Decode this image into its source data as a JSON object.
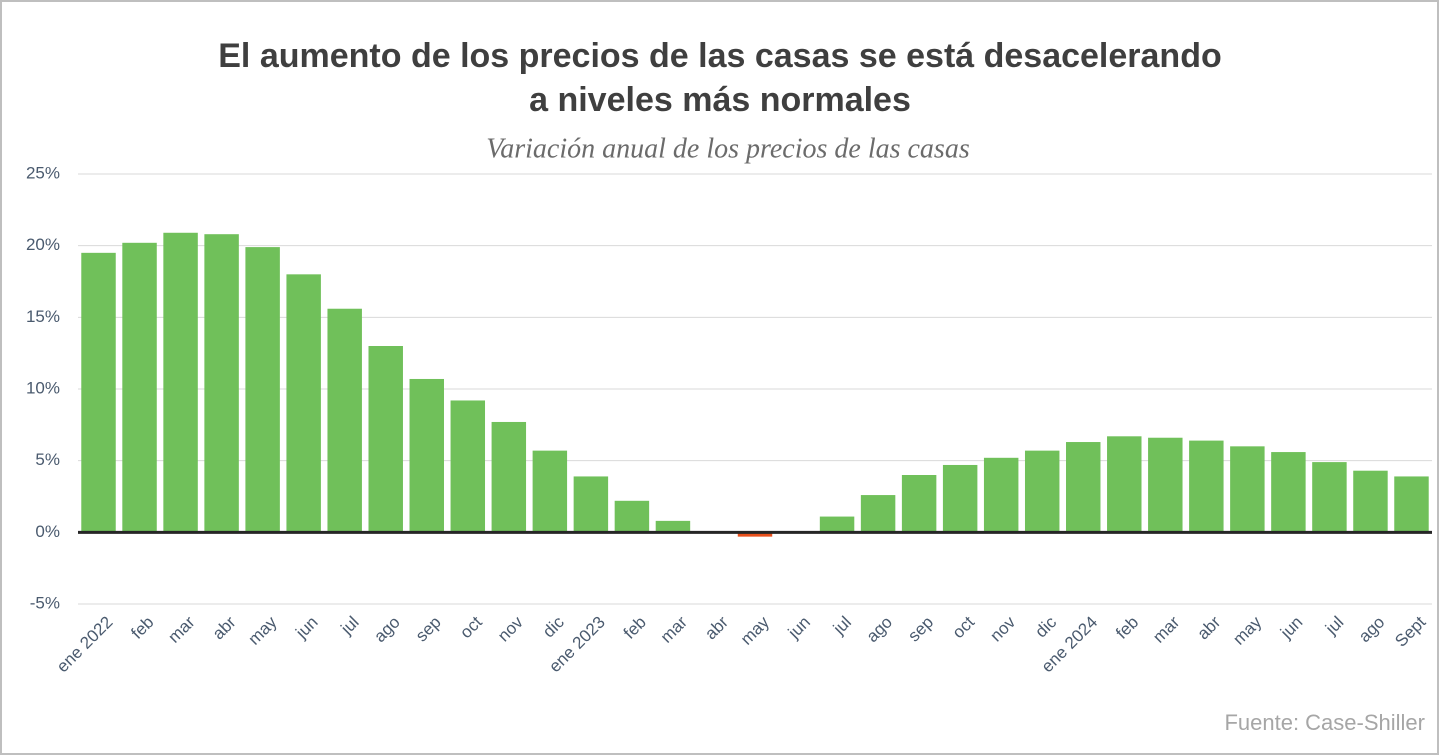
{
  "chart_data": {
    "type": "bar",
    "title": [
      "El aumento de los precios de las casas se está desacelerando",
      "a niveles más normales"
    ],
    "subtitle": "Variación anual de los precios de las casas",
    "source": "Fuente: Case-Shiller",
    "categories": [
      "ene 2022",
      "feb",
      "mar",
      "abr",
      "may",
      "jun",
      "jul",
      "ago",
      "sep",
      "oct",
      "nov",
      "dic",
      "ene 2023",
      "feb",
      "mar",
      "abr",
      "may",
      "jun",
      "jul",
      "ago",
      "sep",
      "oct",
      "nov",
      "dic",
      "ene 2024",
      "feb",
      "mar",
      "abr",
      "may",
      "jun",
      "jul",
      "ago",
      "Sept"
    ],
    "values": [
      19.5,
      20.2,
      20.9,
      20.8,
      19.9,
      18.0,
      15.6,
      13.0,
      10.7,
      9.2,
      7.7,
      5.7,
      3.9,
      2.2,
      0.8,
      0,
      -0.3,
      0,
      1.1,
      2.6,
      4.0,
      4.7,
      5.2,
      5.7,
      6.3,
      6.7,
      6.6,
      6.4,
      6.0,
      5.6,
      4.9,
      4.3,
      3.9
    ],
    "color": "#70c05a",
    "negative_color": "#e8501c",
    "ylim": [
      -5,
      25
    ],
    "yticks": [
      {
        "value": -5,
        "label": "-5%"
      },
      {
        "value": 0,
        "label": "0%"
      },
      {
        "value": 5,
        "label": "5%"
      },
      {
        "value": 10,
        "label": "10%"
      },
      {
        "value": 15,
        "label": "15%"
      },
      {
        "value": 20,
        "label": "20%"
      },
      {
        "value": 25,
        "label": "25%"
      }
    ],
    "grid": true
  }
}
